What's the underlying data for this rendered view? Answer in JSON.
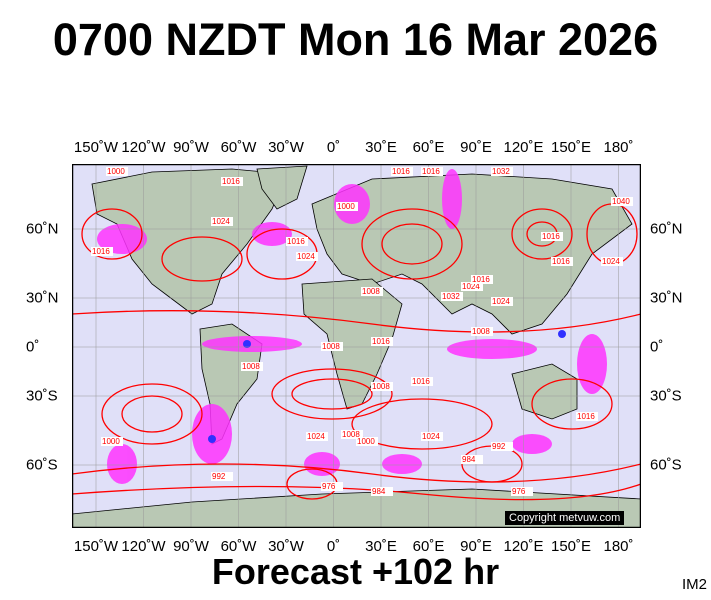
{
  "header": {
    "title": "0700 NZDT Mon 16 Mar 2026"
  },
  "footer": {
    "forecast": "Forecast +102 hr",
    "image_id": "IM2"
  },
  "map": {
    "lon_labels": [
      "150˚W",
      "120˚W",
      "90˚W",
      "60˚W",
      "30˚W",
      "0˚",
      "30˚E",
      "60˚E",
      "90˚E",
      "120˚E",
      "150˚E",
      "180˚"
    ],
    "lat_labels": [
      "60˚N",
      "30˚N",
      "0˚",
      "30˚S",
      "60˚S"
    ],
    "isobar_labels": [
      "1000",
      "1016",
      "1024",
      "1016",
      "1024",
      "1000",
      "1016",
      "1032",
      "1016",
      "1024",
      "1016",
      "1008",
      "1008",
      "1032",
      "1024",
      "1016",
      "1024",
      "1008",
      "1016",
      "1040",
      "1016",
      "1008",
      "1016",
      "1024",
      "1000",
      "1024",
      "1008",
      "1000",
      "992",
      "984",
      "992",
      "976",
      "984",
      "976",
      "1016",
      "1008",
      "1016"
    ],
    "copyright": "Copyright metvuw.com",
    "colors": {
      "ocean": "#e0e0f8",
      "land": "#b9c8b4",
      "isobar": "#ff0000",
      "precip_light": "#ff00ff",
      "precip_heavy": "#3030ff"
    }
  }
}
